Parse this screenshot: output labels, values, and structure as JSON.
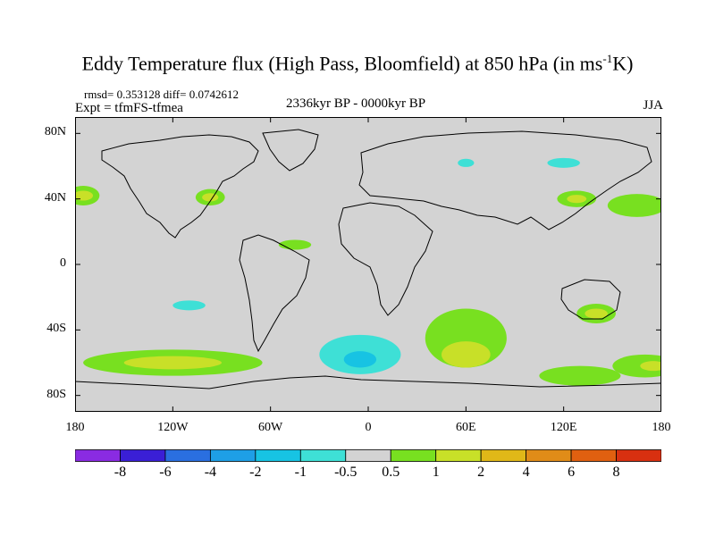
{
  "figure": {
    "title_main": "Eddy Temperature flux (High Pass, Bloomfield) at 850 hPa (in ms",
    "title_sup": "-1",
    "title_end": "K)",
    "stats": "rmsd= 0.353128 diff= 0.0742612",
    "experiment": "Expt = tfmFS-tfmea",
    "period": "2336kyr BP - 0000kyr BP",
    "season": "JJA"
  },
  "map": {
    "projection": "equirectangular",
    "lon_range": [
      -180,
      180
    ],
    "lat_range": [
      -90,
      90
    ],
    "background_color": "#d3d3d3",
    "lat_ticks": [
      "80N",
      "40N",
      "0",
      "40S",
      "80S"
    ],
    "lat_tick_values": [
      80,
      40,
      0,
      -40,
      -80
    ],
    "lon_ticks": [
      "180",
      "120W",
      "60W",
      "0",
      "60E",
      "120E",
      "180"
    ],
    "lon_tick_values": [
      -180,
      -120,
      -60,
      0,
      60,
      120,
      180
    ]
  },
  "colorbar": {
    "labels": [
      "-8",
      "-6",
      "-4",
      "-2",
      "-1",
      "-0.5",
      "0.5",
      "1",
      "2",
      "4",
      "6",
      "8"
    ],
    "colors": [
      "#8a2be2",
      "#3a1fd6",
      "#2a6fe0",
      "#1e9fe6",
      "#17c3e3",
      "#3ee0d6",
      "#d3d3d3",
      "#78e020",
      "#c8e028",
      "#e0b818",
      "#e08c18",
      "#e06010",
      "#d83010"
    ]
  },
  "chart_data": {
    "type": "heatmap",
    "variable": "Eddy Temperature flux (High Pass, Bloomfield) at 850 hPa",
    "units": "ms-1K",
    "season": "JJA",
    "regions": [
      {
        "lon": -175,
        "lat": 42,
        "rx": 10,
        "ry": 6,
        "level": "0.5-1"
      },
      {
        "lon": -175,
        "lat": 42,
        "rx": 6,
        "ry": 3,
        "level": "1-2"
      },
      {
        "lon": -97,
        "lat": 41,
        "rx": 9,
        "ry": 5,
        "level": "0.5-1"
      },
      {
        "lon": -97,
        "lat": 41,
        "rx": 5,
        "ry": 2.5,
        "level": "1-2"
      },
      {
        "lon": 128,
        "lat": 40,
        "rx": 12,
        "ry": 5,
        "level": "0.5-1"
      },
      {
        "lon": 128,
        "lat": 40,
        "rx": 6,
        "ry": 2.5,
        "level": "1-2"
      },
      {
        "lon": 165,
        "lat": 36,
        "rx": 18,
        "ry": 7,
        "level": "0.5-1"
      },
      {
        "lon": 120,
        "lat": 62,
        "rx": 10,
        "ry": 3,
        "level": "-1--0.5"
      },
      {
        "lon": 60,
        "lat": 62,
        "rx": 5,
        "ry": 2.5,
        "level": "-1--0.5"
      },
      {
        "lon": -45,
        "lat": 12,
        "rx": 10,
        "ry": 3,
        "level": "0.5-1"
      },
      {
        "lon": -110,
        "lat": -25,
        "rx": 10,
        "ry": 3,
        "level": "-1--0.5"
      },
      {
        "lon": 140,
        "lat": -30,
        "rx": 12,
        "ry": 6,
        "level": "0.5-1"
      },
      {
        "lon": 140,
        "lat": -30,
        "rx": 7,
        "ry": 3,
        "level": "1-2"
      },
      {
        "lon": 60,
        "lat": -45,
        "rx": 25,
        "ry": 18,
        "level": "0.5-1"
      },
      {
        "lon": 60,
        "lat": -55,
        "rx": 15,
        "ry": 8,
        "level": "1-2"
      },
      {
        "lon": -5,
        "lat": -55,
        "rx": 25,
        "ry": 12,
        "level": "-1--0.5"
      },
      {
        "lon": -5,
        "lat": -58,
        "rx": 10,
        "ry": 5,
        "level": "-2--1"
      },
      {
        "lon": -120,
        "lat": -60,
        "rx": 55,
        "ry": 8,
        "level": "0.5-1"
      },
      {
        "lon": -120,
        "lat": -60,
        "rx": 30,
        "ry": 4,
        "level": "1-2"
      },
      {
        "lon": 170,
        "lat": -62,
        "rx": 20,
        "ry": 7,
        "level": "0.5-1"
      },
      {
        "lon": 175,
        "lat": -62,
        "rx": 8,
        "ry": 3,
        "level": "1-2"
      },
      {
        "lon": 130,
        "lat": -68,
        "rx": 25,
        "ry": 6,
        "level": "0.5-1"
      }
    ]
  }
}
